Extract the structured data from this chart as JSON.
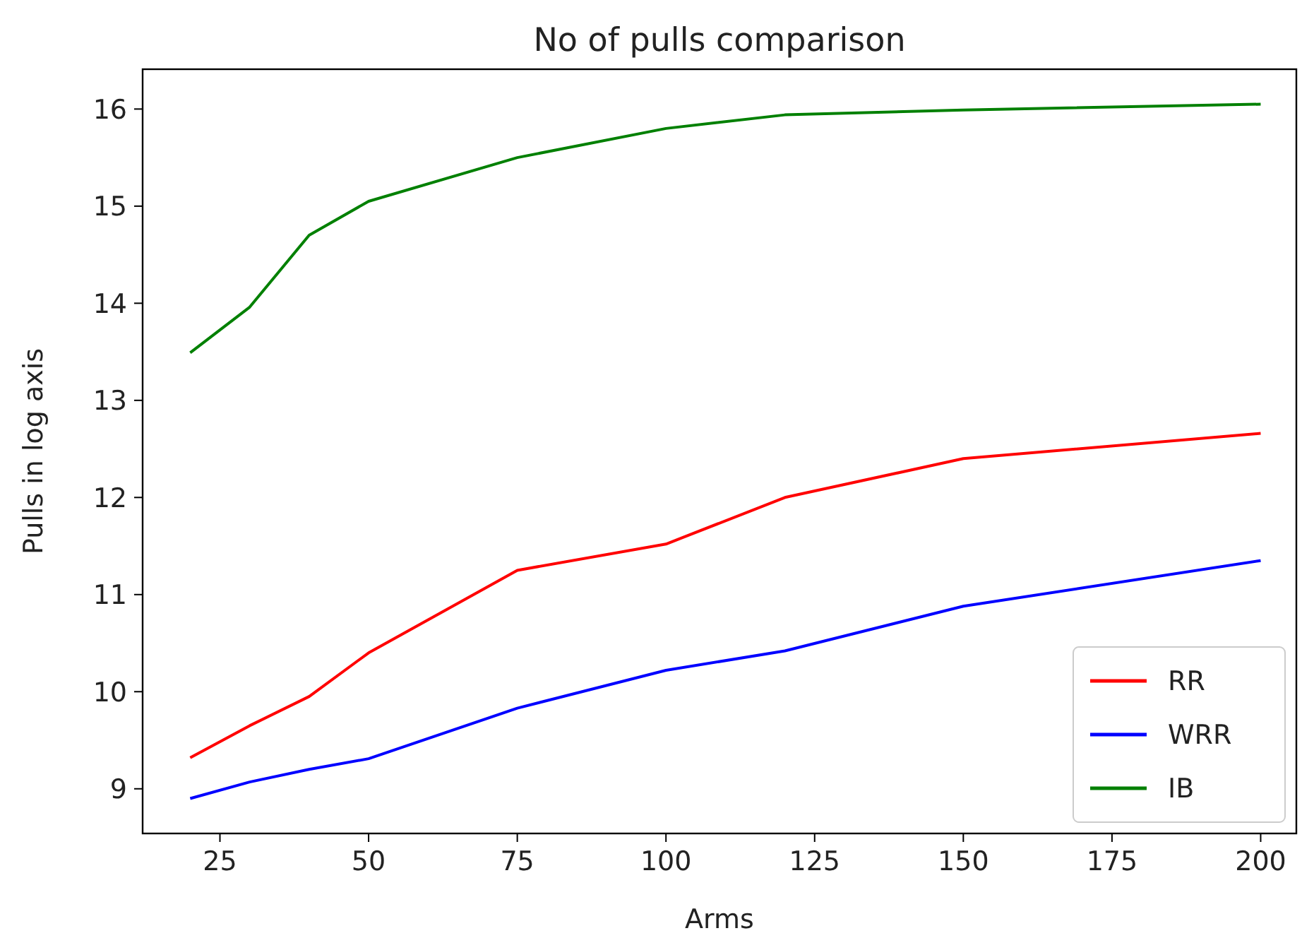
{
  "chart_data": {
    "type": "line",
    "title": "No of pulls comparison",
    "xlabel": "Arms",
    "ylabel": "Pulls in log axis",
    "x": [
      20,
      30,
      40,
      50,
      75,
      100,
      120,
      150,
      200
    ],
    "series": [
      {
        "name": "RR",
        "color": "#ff0000",
        "values": [
          9.32,
          9.65,
          9.95,
          10.4,
          11.25,
          11.52,
          12.0,
          12.4,
          12.66
        ]
      },
      {
        "name": "WRR",
        "color": "#0000ff",
        "values": [
          8.9,
          9.07,
          9.2,
          9.31,
          9.83,
          10.22,
          10.42,
          10.88,
          11.35
        ]
      },
      {
        "name": "IB",
        "color": "#008000",
        "values": [
          13.49,
          13.96,
          14.7,
          15.05,
          15.5,
          15.8,
          15.94,
          15.99,
          16.05
        ]
      }
    ],
    "xlim": [
      12,
      206
    ],
    "xticks": [
      25,
      50,
      75,
      100,
      125,
      150,
      175,
      200
    ],
    "ylim": [
      8.54,
      16.41
    ],
    "yticks": [
      9,
      10,
      11,
      12,
      13,
      14,
      15,
      16
    ],
    "grid": false,
    "legend": "bottom right",
    "line_style": "solid",
    "marker": "none"
  }
}
